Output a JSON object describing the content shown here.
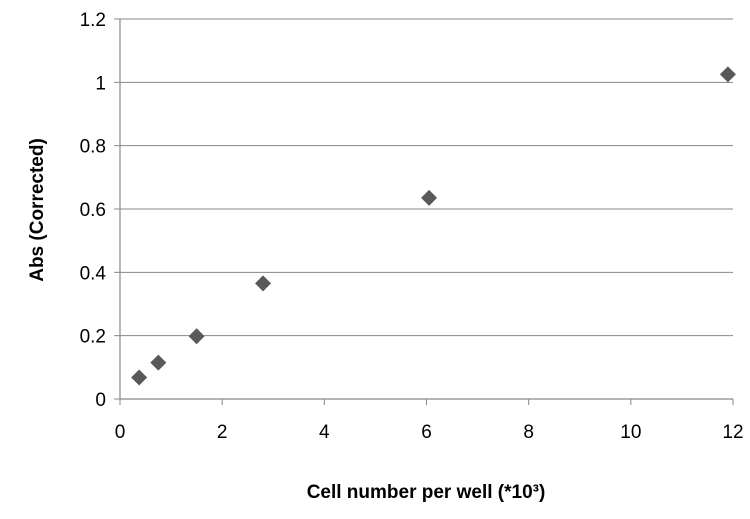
{
  "chart_data": {
    "type": "scatter",
    "title": "",
    "xlabel": "Cell number per well (*10³)",
    "ylabel": "Abs (Corrected)",
    "xlim": [
      0,
      12
    ],
    "ylim": [
      0,
      1.2
    ],
    "xticks": [
      0,
      2,
      4,
      6,
      8,
      10,
      12
    ],
    "yticks": [
      0,
      0.2,
      0.4,
      0.6,
      0.8,
      1.0,
      1.2
    ],
    "xtick_labels": [
      "0",
      "2",
      "4",
      "6",
      "8",
      "10",
      "12"
    ],
    "ytick_labels": [
      "0",
      "0.2",
      "0.4",
      "0.6",
      "0.8",
      "1",
      "1.2"
    ],
    "grid": {
      "horizontal": true,
      "vertical": false
    },
    "legend": "none",
    "marker": "diamond",
    "series": [
      {
        "color": "#595959",
        "points": [
          {
            "x": 0.375,
            "y": 0.068
          },
          {
            "x": 0.75,
            "y": 0.115
          },
          {
            "x": 1.5,
            "y": 0.198
          },
          {
            "x": 2.8,
            "y": 0.365
          },
          {
            "x": 6.05,
            "y": 0.635
          },
          {
            "x": 11.9,
            "y": 1.025
          }
        ]
      }
    ],
    "colors": {
      "gridline": "#878787",
      "axis": "#878787",
      "marker": "#595959"
    }
  }
}
